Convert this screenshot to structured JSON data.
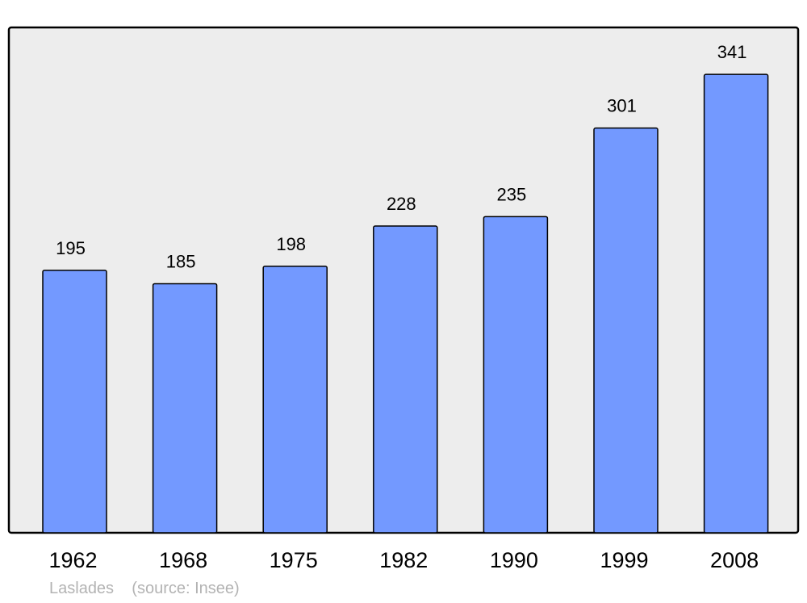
{
  "chart_data": {
    "type": "bar",
    "categories": [
      "1962",
      "1968",
      "1975",
      "1982",
      "1990",
      "1999",
      "2008"
    ],
    "values": [
      195,
      185,
      198,
      228,
      235,
      301,
      341
    ],
    "ylim": [
      0,
      376
    ],
    "grid": false,
    "colors": {
      "bar": "#7399ff",
      "plot_background": "#ededed",
      "frame": "#000000"
    }
  },
  "footer": {
    "place": "Laslades",
    "source": "(source: Insee)"
  }
}
